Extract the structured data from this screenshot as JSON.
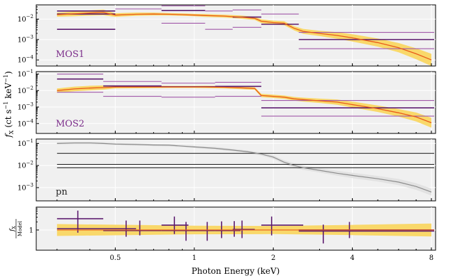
{
  "chart_data": {
    "type": "line",
    "xlabel": "Photon Energy (keV)",
    "ylabel_main": "f_X (ct s^-1 keV^-1)",
    "xscale": "log",
    "xlim": [
      0.25,
      8.3
    ],
    "x_ticks": [
      {
        "value": 0.5,
        "label": "0.5"
      },
      {
        "value": 1,
        "label": "1"
      },
      {
        "value": 2,
        "label": "2"
      },
      {
        "value": 4,
        "label": "4"
      },
      {
        "value": 8,
        "label": "8"
      }
    ],
    "colors": {
      "model_band": "#f9d86a",
      "model_line": "#e85a1a",
      "data": "#5b1a6e",
      "data_light": "#a057a8",
      "pn_band": "#e2e2e2",
      "pn_line": "#8c8c8c"
    },
    "panels": [
      {
        "name": "MOS1",
        "label": "MOS1",
        "ylim_log10": [
          -4.3,
          -1.3
        ],
        "yticks": [
          {
            "value": -2,
            "label": "10^-2"
          },
          {
            "value": -3,
            "label": "10^-3"
          },
          {
            "value": -4,
            "label": "10^-4"
          }
        ],
        "model": {
          "x": [
            0.3,
            0.35,
            0.4,
            0.45,
            0.5,
            0.6,
            0.7,
            0.8,
            0.9,
            1.0,
            1.1,
            1.3,
            1.5,
            1.7,
            1.8,
            2.0,
            2.2,
            2.4,
            2.6,
            3.0,
            3.5,
            4.0,
            5.0,
            6.0,
            7.0,
            8.0
          ],
          "y": [
            -1.78,
            -1.74,
            -1.7,
            -1.67,
            -1.8,
            -1.76,
            -1.75,
            -1.76,
            -1.78,
            -1.8,
            -1.82,
            -1.85,
            -1.9,
            -1.96,
            -2.1,
            -2.17,
            -2.2,
            -2.45,
            -2.6,
            -2.7,
            -2.8,
            -2.92,
            -3.15,
            -3.4,
            -3.7,
            -4.0
          ],
          "band": [
            0.1,
            0.12,
            0.13,
            0.14,
            0.09,
            0.08,
            0.07,
            0.06,
            0.06,
            0.06,
            0.07,
            0.07,
            0.08,
            0.08,
            0.09,
            0.1,
            0.1,
            0.1,
            0.12,
            0.13,
            0.16,
            0.18,
            0.2,
            0.23,
            0.27,
            0.3
          ]
        },
        "segments": [
          {
            "x0": 0.3,
            "x1": 0.5,
            "y": -1.75,
            "light": false
          },
          {
            "x0": 0.3,
            "x1": 0.5,
            "y": -1.6,
            "light": false
          },
          {
            "x0": 0.3,
            "x1": 0.5,
            "y": -2.5,
            "light": false
          },
          {
            "x0": 0.5,
            "x1": 0.75,
            "y": -1.5,
            "light": true
          },
          {
            "x0": 0.75,
            "x1": 1.1,
            "y": -1.58,
            "light": false
          },
          {
            "x0": 0.75,
            "x1": 1.1,
            "y": -1.35,
            "light": true
          },
          {
            "x0": 0.75,
            "x1": 1.1,
            "y": -2.2,
            "light": true
          },
          {
            "x0": 1.1,
            "x1": 1.4,
            "y": -1.6,
            "light": true
          },
          {
            "x0": 1.1,
            "x1": 1.4,
            "y": -2.5,
            "light": true
          },
          {
            "x0": 1.4,
            "x1": 1.8,
            "y": -1.9,
            "light": false
          },
          {
            "x0": 1.4,
            "x1": 1.8,
            "y": -1.55,
            "light": true
          },
          {
            "x0": 1.4,
            "x1": 1.8,
            "y": -2.4,
            "light": true
          },
          {
            "x0": 1.8,
            "x1": 2.5,
            "y": -2.25,
            "light": false
          },
          {
            "x0": 1.8,
            "x1": 2.5,
            "y": -1.75,
            "light": true
          },
          {
            "x0": 2.5,
            "x1": 8.2,
            "y": -3.0,
            "light": false
          },
          {
            "x0": 2.5,
            "x1": 8.2,
            "y": -2.65,
            "light": true
          },
          {
            "x0": 2.5,
            "x1": 8.2,
            "y": -3.45,
            "light": true
          }
        ]
      },
      {
        "name": "MOS2",
        "label": "MOS2",
        "ylim_log10": [
          -4.6,
          -0.85
        ],
        "yticks": [
          {
            "value": -1,
            "label": "10^-1"
          },
          {
            "value": -2,
            "label": "10^-2"
          },
          {
            "value": -3,
            "label": "10^-3"
          },
          {
            "value": -4,
            "label": "10^-4"
          }
        ],
        "model": {
          "x": [
            0.3,
            0.35,
            0.4,
            0.45,
            0.5,
            0.6,
            0.7,
            0.8,
            0.9,
            1.0,
            1.1,
            1.3,
            1.5,
            1.7,
            1.8,
            2.0,
            2.2,
            2.4,
            2.6,
            3.0,
            3.5,
            4.0,
            5.0,
            6.0,
            7.0,
            8.0
          ],
          "y": [
            -2.0,
            -1.9,
            -1.85,
            -1.82,
            -1.78,
            -1.78,
            -1.78,
            -1.78,
            -1.78,
            -1.78,
            -1.78,
            -1.8,
            -1.83,
            -1.88,
            -2.3,
            -2.35,
            -2.4,
            -2.5,
            -2.55,
            -2.62,
            -2.7,
            -2.85,
            -3.1,
            -3.35,
            -3.6,
            -3.95
          ],
          "band": [
            0.13,
            0.14,
            0.14,
            0.13,
            0.09,
            0.08,
            0.07,
            0.06,
            0.06,
            0.06,
            0.07,
            0.07,
            0.08,
            0.08,
            0.1,
            0.1,
            0.1,
            0.11,
            0.12,
            0.13,
            0.16,
            0.18,
            0.2,
            0.23,
            0.27,
            0.3
          ]
        },
        "segments": [
          {
            "x0": 0.3,
            "x1": 0.45,
            "y": -1.3,
            "light": false
          },
          {
            "x0": 0.3,
            "x1": 0.45,
            "y": -1.0,
            "light": true
          },
          {
            "x0": 0.3,
            "x1": 0.45,
            "y": -2.1,
            "light": true
          },
          {
            "x0": 0.45,
            "x1": 0.75,
            "y": -1.72,
            "light": false
          },
          {
            "x0": 0.45,
            "x1": 0.75,
            "y": -1.45,
            "light": true
          },
          {
            "x0": 0.45,
            "x1": 0.75,
            "y": -2.35,
            "light": true
          },
          {
            "x0": 0.75,
            "x1": 1.2,
            "y": -1.77,
            "light": false
          },
          {
            "x0": 0.75,
            "x1": 1.2,
            "y": -1.55,
            "light": true
          },
          {
            "x0": 0.75,
            "x1": 1.2,
            "y": -2.4,
            "light": true
          },
          {
            "x0": 1.2,
            "x1": 1.8,
            "y": -1.75,
            "light": false
          },
          {
            "x0": 1.2,
            "x1": 1.8,
            "y": -1.5,
            "light": true
          },
          {
            "x0": 1.2,
            "x1": 1.8,
            "y": -2.35,
            "light": true
          },
          {
            "x0": 1.8,
            "x1": 8.2,
            "y": -3.05,
            "light": false
          },
          {
            "x0": 1.8,
            "x1": 8.2,
            "y": -2.6,
            "light": true
          },
          {
            "x0": 1.8,
            "x1": 8.2,
            "y": -3.55,
            "light": true
          }
        ]
      },
      {
        "name": "pn",
        "label": "pn",
        "ylim_log10": [
          -3.6,
          -0.8
        ],
        "yticks": [
          {
            "value": -1,
            "label": "10^-1"
          },
          {
            "value": -2,
            "label": "10^-2"
          },
          {
            "value": -3,
            "label": "10^-3"
          }
        ],
        "model": {
          "x": [
            0.3,
            0.35,
            0.4,
            0.45,
            0.5,
            0.6,
            0.7,
            0.8,
            0.9,
            1.0,
            1.2,
            1.4,
            1.6,
            1.8,
            2.0,
            2.2,
            2.4,
            2.6,
            3.0,
            3.5,
            4.0,
            5.0,
            6.0,
            7.0,
            8.0
          ],
          "y": [
            -1.0,
            -0.98,
            -0.98,
            -1.0,
            -1.03,
            -1.05,
            -1.07,
            -1.08,
            -1.12,
            -1.16,
            -1.22,
            -1.3,
            -1.38,
            -1.48,
            -1.62,
            -1.85,
            -2.0,
            -2.1,
            -2.22,
            -2.35,
            -2.45,
            -2.6,
            -2.75,
            -2.95,
            -3.2
          ],
          "band": [
            0.05,
            0.05,
            0.05,
            0.05,
            0.05,
            0.05,
            0.05,
            0.05,
            0.05,
            0.05,
            0.06,
            0.06,
            0.06,
            0.07,
            0.08,
            0.09,
            0.1,
            0.1,
            0.1,
            0.11,
            0.12,
            0.13,
            0.14,
            0.15,
            0.16
          ]
        },
        "segments": [
          {
            "x0": 0.3,
            "x1": 8.2,
            "y": -1.45,
            "light": false
          },
          {
            "x0": 0.3,
            "x1": 8.2,
            "y": -1.95,
            "light": false
          },
          {
            "x0": 0.3,
            "x1": 8.2,
            "y": -2.1,
            "light": false
          }
        ]
      },
      {
        "name": "ratio",
        "label": "",
        "ylabel": "f_X / Model",
        "ylim_log10": [
          -0.75,
          0.85
        ],
        "yticks": [
          {
            "value": 0,
            "label": "1"
          }
        ],
        "band": {
          "x": [
            0.3,
            1.0,
            2.0,
            4.0,
            8.0
          ],
          "half": [
            0.22,
            0.16,
            0.15,
            0.19,
            0.24
          ]
        },
        "hsegments": [
          {
            "x0": 0.3,
            "x1": 0.45,
            "y": 0.42
          },
          {
            "x0": 0.3,
            "x1": 0.6,
            "y": 0.05
          },
          {
            "x0": 0.45,
            "x1": 0.75,
            "y": -0.02
          },
          {
            "x0": 0.75,
            "x1": 0.95,
            "y": 0.18
          },
          {
            "x0": 0.75,
            "x1": 1.2,
            "y": -0.02
          },
          {
            "x0": 1.2,
            "x1": 1.5,
            "y": -0.02
          },
          {
            "x0": 1.4,
            "x1": 1.7,
            "y": 0.02
          },
          {
            "x0": 1.8,
            "x1": 2.6,
            "y": 0.18
          },
          {
            "x0": 2.5,
            "x1": 8.2,
            "y": 0.0
          },
          {
            "x0": 2.5,
            "x1": 8.2,
            "y": -0.04
          }
        ],
        "verrors": [
          {
            "x": 0.36,
            "lo": -0.1,
            "hi": 0.72
          },
          {
            "x": 0.55,
            "lo": -0.25,
            "hi": 0.35
          },
          {
            "x": 0.62,
            "lo": -0.2,
            "hi": 0.35
          },
          {
            "x": 0.84,
            "lo": -0.15,
            "hi": 0.5
          },
          {
            "x": 0.93,
            "lo": -0.4,
            "hi": 0.3
          },
          {
            "x": 1.12,
            "lo": -0.4,
            "hi": 0.3
          },
          {
            "x": 1.27,
            "lo": -0.3,
            "hi": 0.32
          },
          {
            "x": 1.42,
            "lo": -0.25,
            "hi": 0.33
          },
          {
            "x": 1.52,
            "lo": -0.3,
            "hi": 0.35
          },
          {
            "x": 1.97,
            "lo": -0.2,
            "hi": 0.5
          },
          {
            "x": 3.1,
            "lo": -0.5,
            "hi": 0.2
          },
          {
            "x": 3.9,
            "lo": -0.3,
            "hi": 0.3
          }
        ]
      }
    ]
  }
}
